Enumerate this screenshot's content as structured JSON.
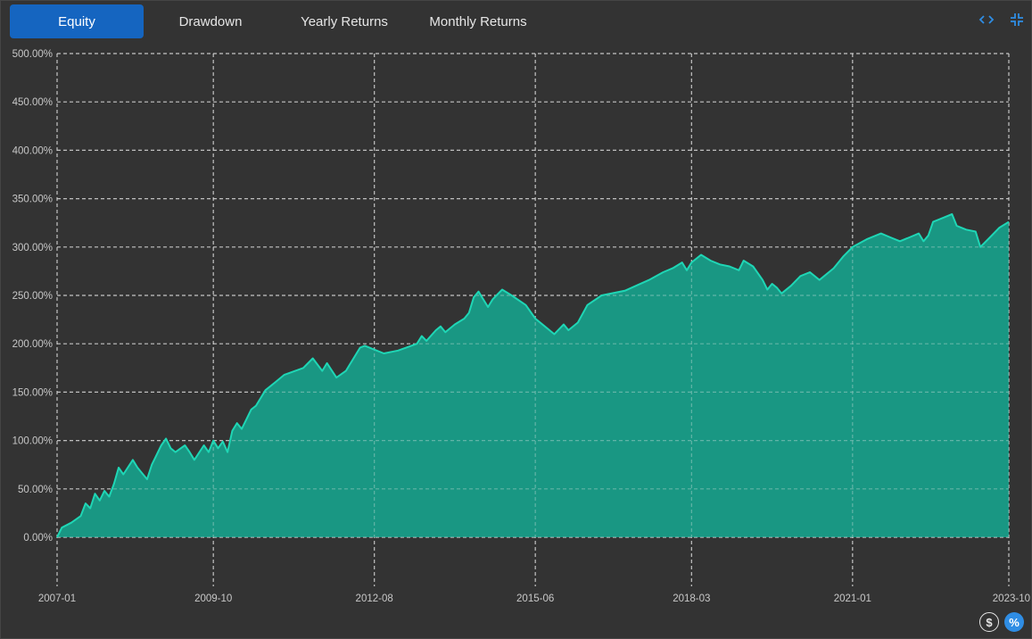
{
  "tabs": [
    {
      "label": "Equity",
      "active": true
    },
    {
      "label": "Drawdown",
      "active": false
    },
    {
      "label": "Yearly Returns",
      "active": false
    },
    {
      "label": "Monthly Returns",
      "active": false
    }
  ],
  "toolbar": {
    "expand_icon": "code-brackets-icon",
    "collapse_icon": "compress-icon"
  },
  "bottom_buttons": {
    "dollar_label": "$",
    "percent_label": "%"
  },
  "colors": {
    "background": "#333333",
    "area_fill": "#17a08a",
    "line": "#1fd6b5",
    "grid": "#d9d9d9",
    "tab_active": "#1565c0",
    "icon_accent": "#2f8de4"
  },
  "chart_data": {
    "type": "area",
    "title": "",
    "xlabel": "",
    "ylabel": "",
    "x_ticks": [
      "2007-01",
      "2009-10",
      "2012-08",
      "2015-06",
      "2018-03",
      "2021-01",
      "2023-10"
    ],
    "y_ticks": [
      "0.00%",
      "50.00%",
      "100.00%",
      "150.00%",
      "200.00%",
      "250.00%",
      "300.00%",
      "350.00%",
      "400.00%",
      "450.00%",
      "500.00%"
    ],
    "ylim": [
      0,
      500
    ],
    "xlim": [
      "2007-01",
      "2023-10"
    ],
    "grid": true,
    "series": [
      {
        "values": [
          [
            "2007-01",
            0
          ],
          [
            "2007-02",
            10
          ],
          [
            "2007-04",
            15
          ],
          [
            "2007-06",
            22
          ],
          [
            "2007-07",
            35
          ],
          [
            "2007-08",
            30
          ],
          [
            "2007-09",
            45
          ],
          [
            "2007-10",
            38
          ],
          [
            "2007-11",
            48
          ],
          [
            "2007-12",
            42
          ],
          [
            "2008-01",
            55
          ],
          [
            "2008-02",
            72
          ],
          [
            "2008-03",
            65
          ],
          [
            "2008-05",
            80
          ],
          [
            "2008-06",
            72
          ],
          [
            "2008-08",
            60
          ],
          [
            "2008-09",
            75
          ],
          [
            "2008-11",
            95
          ],
          [
            "2008-12",
            102
          ],
          [
            "2009-01",
            92
          ],
          [
            "2009-02",
            88
          ],
          [
            "2009-04",
            95
          ],
          [
            "2009-05",
            88
          ],
          [
            "2009-06",
            80
          ],
          [
            "2009-08",
            95
          ],
          [
            "2009-09",
            88
          ],
          [
            "2009-10",
            100
          ],
          [
            "2009-11",
            92
          ],
          [
            "2009-12",
            99
          ],
          [
            "2010-01",
            88
          ],
          [
            "2010-02",
            110
          ],
          [
            "2010-03",
            118
          ],
          [
            "2010-04",
            112
          ],
          [
            "2010-06",
            132
          ],
          [
            "2010-07",
            136
          ],
          [
            "2010-09",
            152
          ],
          [
            "2010-11",
            160
          ],
          [
            "2011-01",
            168
          ],
          [
            "2011-05",
            175
          ],
          [
            "2011-07",
            185
          ],
          [
            "2011-09",
            172
          ],
          [
            "2011-10",
            180
          ],
          [
            "2011-12",
            165
          ],
          [
            "2012-02",
            172
          ],
          [
            "2012-03",
            180
          ],
          [
            "2012-05",
            196
          ],
          [
            "2012-06",
            198
          ],
          [
            "2012-10",
            190
          ],
          [
            "2013-01",
            193
          ],
          [
            "2013-05",
            200
          ],
          [
            "2013-06",
            208
          ],
          [
            "2013-07",
            203
          ],
          [
            "2013-09",
            214
          ],
          [
            "2013-10",
            218
          ],
          [
            "2013-11",
            212
          ],
          [
            "2014-01",
            220
          ],
          [
            "2014-03",
            226
          ],
          [
            "2014-04",
            232
          ],
          [
            "2014-05",
            248
          ],
          [
            "2014-06",
            254
          ],
          [
            "2014-08",
            238
          ],
          [
            "2014-09",
            246
          ],
          [
            "2014-11",
            256
          ],
          [
            "2015-01",
            250
          ],
          [
            "2015-04",
            240
          ],
          [
            "2015-06",
            226
          ],
          [
            "2015-08",
            218
          ],
          [
            "2015-10",
            210
          ],
          [
            "2015-11",
            215
          ],
          [
            "2015-12",
            220
          ],
          [
            "2016-01",
            214
          ],
          [
            "2016-03",
            222
          ],
          [
            "2016-05",
            240
          ],
          [
            "2016-08",
            250
          ],
          [
            "2017-01",
            255
          ],
          [
            "2017-06",
            266
          ],
          [
            "2017-09",
            274
          ],
          [
            "2017-11",
            278
          ],
          [
            "2018-01",
            284
          ],
          [
            "2018-02",
            276
          ],
          [
            "2018-03",
            284
          ],
          [
            "2018-05",
            292
          ],
          [
            "2018-07",
            286
          ],
          [
            "2018-09",
            282
          ],
          [
            "2018-11",
            280
          ],
          [
            "2019-01",
            276
          ],
          [
            "2019-02",
            286
          ],
          [
            "2019-04",
            280
          ],
          [
            "2019-06",
            266
          ],
          [
            "2019-07",
            256
          ],
          [
            "2019-08",
            262
          ],
          [
            "2019-09",
            258
          ],
          [
            "2019-10",
            252
          ],
          [
            "2019-12",
            260
          ],
          [
            "2020-02",
            270
          ],
          [
            "2020-04",
            274
          ],
          [
            "2020-06",
            266
          ],
          [
            "2020-09",
            278
          ],
          [
            "2020-11",
            290
          ],
          [
            "2021-01",
            300
          ],
          [
            "2021-04",
            308
          ],
          [
            "2021-07",
            314
          ],
          [
            "2021-09",
            310
          ],
          [
            "2021-11",
            306
          ],
          [
            "2022-01",
            310
          ],
          [
            "2022-03",
            314
          ],
          [
            "2022-04",
            306
          ],
          [
            "2022-05",
            312
          ],
          [
            "2022-06",
            326
          ],
          [
            "2022-08",
            330
          ],
          [
            "2022-10",
            334
          ],
          [
            "2022-11",
            322
          ],
          [
            "2023-01",
            318
          ],
          [
            "2023-03",
            316
          ],
          [
            "2023-04",
            300
          ],
          [
            "2023-06",
            310
          ],
          [
            "2023-08",
            320
          ],
          [
            "2023-10",
            326
          ]
        ]
      }
    ]
  }
}
